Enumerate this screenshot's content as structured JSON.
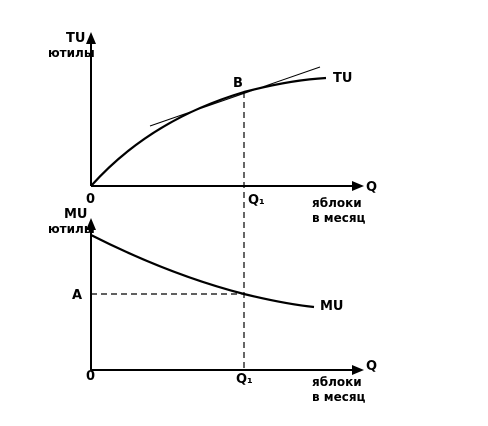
{
  "top_panel": {
    "y_axis_label": "TU",
    "y_axis_unit": "ютилы",
    "point_label": "B",
    "curve_label": "TU",
    "origin": "0",
    "x_axis_label": "Q",
    "x_marker": "Q₁",
    "x_axis_unit": [
      "яблоки",
      "в месяц"
    ]
  },
  "bottom_panel": {
    "y_axis_label": "MU",
    "y_axis_unit": "ютилы",
    "point_label": "A",
    "curve_label": "MU",
    "origin": "0",
    "x_axis_label": "Q",
    "x_marker": "Q₁",
    "x_axis_unit": [
      "яблоки",
      "в месяц"
    ]
  }
}
